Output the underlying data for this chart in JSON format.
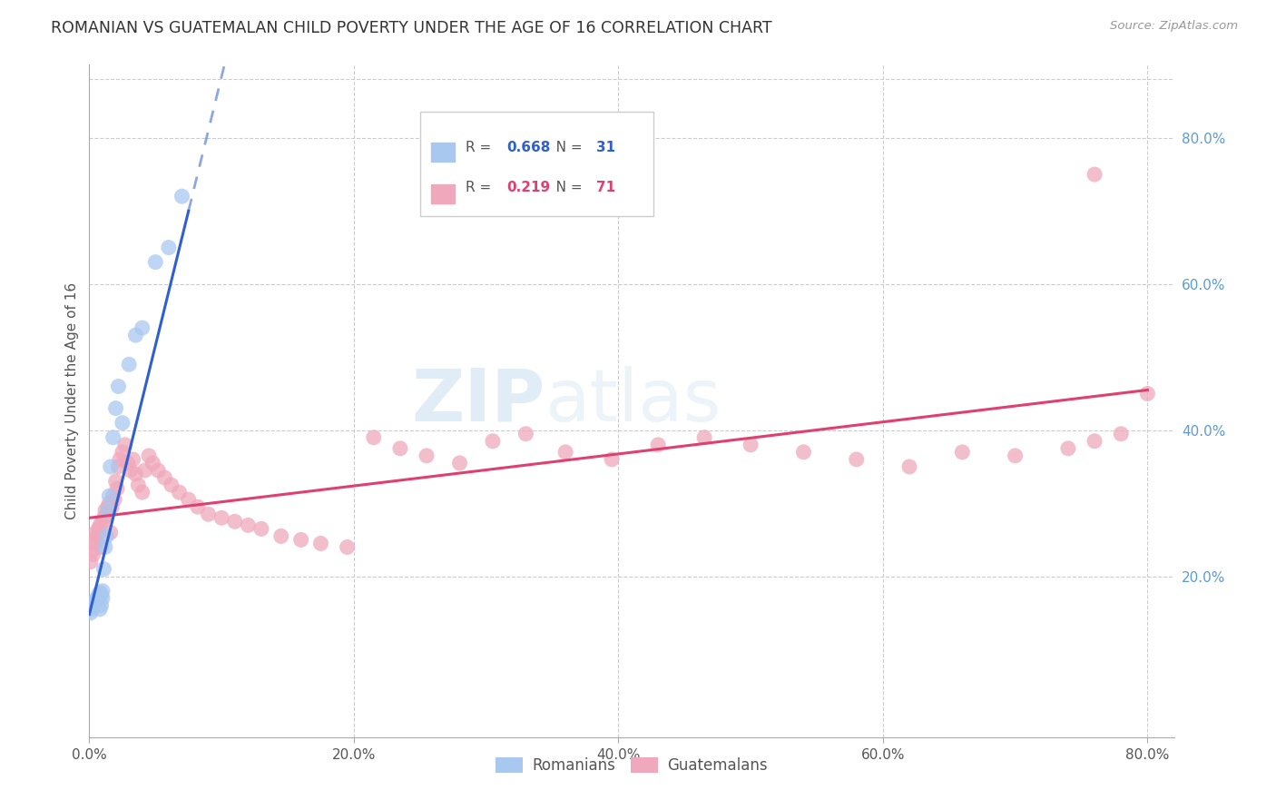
{
  "title": "ROMANIAN VS GUATEMALAN CHILD POVERTY UNDER THE AGE OF 16 CORRELATION CHART",
  "source": "Source: ZipAtlas.com",
  "ylabel": "Child Poverty Under the Age of 16",
  "xlim": [
    0.0,
    0.82
  ],
  "ylim": [
    -0.02,
    0.9
  ],
  "x_ticks": [
    0.0,
    0.2,
    0.4,
    0.6,
    0.8
  ],
  "x_tick_labels": [
    "0.0%",
    "20.0%",
    "40.0%",
    "60.0%",
    "80.0%"
  ],
  "y_ticks_right": [
    0.2,
    0.4,
    0.6,
    0.8
  ],
  "y_tick_labels_right": [
    "20.0%",
    "40.0%",
    "60.0%",
    "80.0%"
  ],
  "romanian_R": "0.668",
  "romanian_N": "31",
  "guatemalan_R": "0.219",
  "guatemalan_N": "71",
  "romanian_color": "#a8c8f0",
  "guatemalan_color": "#f0a8bc",
  "romanian_line_color": "#3060d0",
  "guatemalan_line_color": "#e04070",
  "watermark_zip": "ZIP",
  "watermark_atlas": "atlas",
  "romanian_x": [
    0.001,
    0.002,
    0.003,
    0.004,
    0.005,
    0.005,
    0.006,
    0.007,
    0.007,
    0.008,
    0.008,
    0.009,
    0.009,
    0.01,
    0.01,
    0.011,
    0.012,
    0.013,
    0.014,
    0.015,
    0.016,
    0.018,
    0.02,
    0.022,
    0.025,
    0.03,
    0.035,
    0.04,
    0.05,
    0.06,
    0.07
  ],
  "romanian_y": [
    0.15,
    0.155,
    0.158,
    0.162,
    0.165,
    0.168,
    0.17,
    0.172,
    0.175,
    0.178,
    0.155,
    0.16,
    0.175,
    0.18,
    0.17,
    0.21,
    0.24,
    0.255,
    0.29,
    0.31,
    0.35,
    0.39,
    0.43,
    0.46,
    0.41,
    0.49,
    0.53,
    0.54,
    0.63,
    0.65,
    0.72
  ],
  "guatemalan_x": [
    0.001,
    0.002,
    0.003,
    0.004,
    0.005,
    0.005,
    0.006,
    0.007,
    0.008,
    0.009,
    0.01,
    0.011,
    0.012,
    0.013,
    0.014,
    0.015,
    0.016,
    0.017,
    0.018,
    0.019,
    0.02,
    0.021,
    0.022,
    0.023,
    0.025,
    0.027,
    0.029,
    0.031,
    0.033,
    0.035,
    0.037,
    0.04,
    0.042,
    0.045,
    0.048,
    0.052,
    0.057,
    0.062,
    0.068,
    0.075,
    0.082,
    0.09,
    0.1,
    0.11,
    0.12,
    0.13,
    0.145,
    0.16,
    0.175,
    0.195,
    0.215,
    0.235,
    0.255,
    0.28,
    0.305,
    0.33,
    0.36,
    0.395,
    0.43,
    0.465,
    0.5,
    0.54,
    0.58,
    0.62,
    0.66,
    0.7,
    0.74,
    0.76,
    0.78,
    0.8,
    0.76
  ],
  "guatemalan_y": [
    0.22,
    0.235,
    0.23,
    0.245,
    0.25,
    0.26,
    0.255,
    0.265,
    0.27,
    0.24,
    0.275,
    0.28,
    0.29,
    0.285,
    0.295,
    0.3,
    0.26,
    0.295,
    0.31,
    0.305,
    0.33,
    0.32,
    0.35,
    0.36,
    0.37,
    0.38,
    0.355,
    0.345,
    0.36,
    0.34,
    0.325,
    0.315,
    0.345,
    0.365,
    0.355,
    0.345,
    0.335,
    0.325,
    0.315,
    0.305,
    0.295,
    0.285,
    0.28,
    0.275,
    0.27,
    0.265,
    0.255,
    0.25,
    0.245,
    0.24,
    0.39,
    0.375,
    0.365,
    0.355,
    0.385,
    0.395,
    0.37,
    0.36,
    0.38,
    0.39,
    0.38,
    0.37,
    0.36,
    0.35,
    0.37,
    0.365,
    0.375,
    0.385,
    0.395,
    0.45,
    0.75
  ],
  "guat_line_x0": 0.0,
  "guat_line_y0": 0.28,
  "guat_line_x1": 0.8,
  "guat_line_y1": 0.455,
  "rom_line_x0": 0.0,
  "rom_line_y0": 0.148,
  "rom_line_x1": 0.075,
  "rom_line_y1": 0.7
}
